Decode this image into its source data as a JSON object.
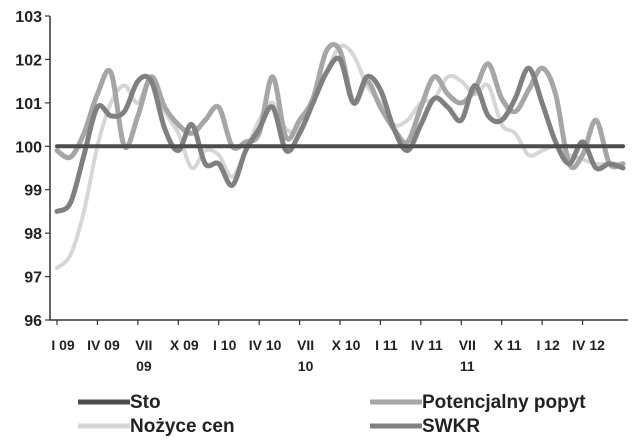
{
  "chart_data": {
    "type": "line",
    "title": "",
    "xlabel": "",
    "ylabel": "",
    "ylim": [
      96,
      103
    ],
    "yticks": [
      96,
      97,
      98,
      99,
      100,
      101,
      102,
      103
    ],
    "grid": false,
    "legend_position": "bottom",
    "x_tick_labels": [
      {
        "index": 0,
        "lines": [
          "I 09"
        ]
      },
      {
        "index": 3,
        "lines": [
          "IV 09"
        ]
      },
      {
        "index": 6,
        "lines": [
          "VII",
          "09"
        ]
      },
      {
        "index": 9,
        "lines": [
          "X 09"
        ]
      },
      {
        "index": 12,
        "lines": [
          "I 10"
        ]
      },
      {
        "index": 15,
        "lines": [
          "IV 10"
        ]
      },
      {
        "index": 18,
        "lines": [
          "VII",
          "10"
        ]
      },
      {
        "index": 21,
        "lines": [
          "X 10"
        ]
      },
      {
        "index": 24,
        "lines": [
          "I  11"
        ]
      },
      {
        "index": 27,
        "lines": [
          "IV 11"
        ]
      },
      {
        "index": 30,
        "lines": [
          "VII",
          "11"
        ]
      },
      {
        "index": 33,
        "lines": [
          "X 11"
        ]
      },
      {
        "index": 36,
        "lines": [
          "I 12"
        ]
      },
      {
        "index": 39,
        "lines": [
          "IV 12"
        ]
      }
    ],
    "x_count": 43,
    "series": [
      {
        "name": "Sto",
        "color": "#4d4d4d",
        "width": 4,
        "values": [
          100,
          100,
          100,
          100,
          100,
          100,
          100,
          100,
          100,
          100,
          100,
          100,
          100,
          100,
          100,
          100,
          100,
          100,
          100,
          100,
          100,
          100,
          100,
          100,
          100,
          100,
          100,
          100,
          100,
          100,
          100,
          100,
          100,
          100,
          100,
          100,
          100,
          100,
          100,
          100,
          100,
          100,
          100
        ]
      },
      {
        "name": "Potencjalny popyt",
        "color": "#a6a6a6",
        "width": 5,
        "values": [
          99.9,
          99.75,
          100.3,
          101.2,
          101.7,
          100.0,
          100.7,
          101.6,
          100.9,
          100.5,
          100.3,
          100.6,
          100.9,
          100.0,
          100.1,
          100.3,
          101.6,
          100.2,
          100.6,
          101.1,
          102.2,
          102.2,
          101.0,
          101.5,
          100.9,
          100.4,
          100.1,
          100.9,
          101.6,
          101.2,
          101.0,
          101.3,
          101.9,
          101.1,
          100.8,
          101.3,
          101.8,
          101.2,
          99.6,
          99.8,
          100.6,
          99.6,
          99.6
        ]
      },
      {
        "name": "Nożyce cen",
        "color": "#d6d6d6",
        "width": 4,
        "values": [
          97.2,
          97.5,
          98.5,
          100.0,
          101.0,
          101.4,
          101.0,
          101.6,
          100.8,
          100.3,
          99.5,
          99.9,
          99.8,
          99.3,
          99.9,
          100.6,
          101.0,
          100.4,
          100.4,
          101.0,
          101.7,
          102.3,
          102.1,
          101.4,
          101.0,
          100.5,
          100.6,
          101.0,
          101.1,
          101.6,
          101.5,
          101.2,
          101.4,
          100.5,
          100.3,
          99.8,
          99.9,
          100.0,
          99.8,
          99.7,
          99.6,
          99.6,
          99.6
        ]
      },
      {
        "name": "SWKR",
        "color": "#808080",
        "width": 5,
        "values": [
          98.5,
          98.7,
          99.8,
          100.9,
          100.7,
          100.8,
          101.5,
          101.5,
          100.4,
          99.9,
          100.5,
          99.6,
          99.6,
          99.1,
          99.9,
          100.4,
          100.9,
          99.9,
          100.3,
          101.0,
          101.7,
          102.0,
          101.0,
          101.6,
          101.3,
          100.4,
          99.9,
          100.5,
          101.1,
          100.9,
          100.6,
          101.4,
          100.7,
          100.6,
          101.1,
          101.8,
          101.0,
          100.1,
          99.6,
          100.1,
          99.5,
          99.6,
          99.5
        ]
      }
    ],
    "legend": [
      {
        "series": 0,
        "label": "Sto"
      },
      {
        "series": 1,
        "label": "Potencjalny popyt"
      },
      {
        "series": 2,
        "label": "Nożyce cen"
      },
      {
        "series": 3,
        "label": "SWKR"
      }
    ]
  }
}
